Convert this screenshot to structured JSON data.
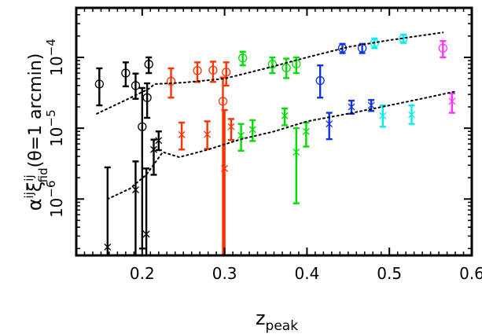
{
  "chart_data": {
    "type": "scatter",
    "xlabel": {
      "main": "z",
      "sub": "peak"
    },
    "ylabel": {
      "alpha": "α",
      "sup1": "ij",
      "xi": "ξ",
      "sup2": "ij",
      "sub": "fid",
      "tail": "(θ=1  arcmin)"
    },
    "xlim": [
      0.12,
      0.6
    ],
    "ylim": [
      1.6e-07,
      0.0005
    ],
    "yscale": "log",
    "x_ticks": [
      {
        "value": 0.2,
        "label": "0.2"
      },
      {
        "value": 0.3,
        "label": "0.3"
      },
      {
        "value": 0.4,
        "label": "0.4"
      },
      {
        "value": 0.5,
        "label": "0.5"
      },
      {
        "value": 0.6,
        "label": "0.6"
      }
    ],
    "y_ticks": [
      {
        "value": 1e-06,
        "label": "10",
        "exp": "−6"
      },
      {
        "value": 1e-05,
        "label": "10",
        "exp": "−5"
      },
      {
        "value": 0.0001,
        "label": "10",
        "exp": "−4"
      }
    ],
    "colors": {
      "black": "#000000",
      "red": "#ff3300",
      "green": "#00dd00",
      "blue": "#1133dd",
      "cyan": "#00eeee",
      "magenta": "#ff33ff"
    },
    "series": [
      {
        "color": "black",
        "marker": "circle",
        "points": [
          {
            "x": 0.148,
            "y": 4.2e-05,
            "lo": 2.1e-05,
            "hi": 7e-05
          },
          {
            "x": 0.18,
            "y": 6e-05,
            "lo": 3.9e-05,
            "hi": 8.5e-05
          },
          {
            "x": 0.192,
            "y": 4e-05,
            "lo": 2.6e-05,
            "hi": 5.9e-05
          },
          {
            "x": 0.2,
            "y": 1.05e-05,
            "lo": 2e-07,
            "hi": 3.7e-05
          },
          {
            "x": 0.206,
            "y": 2.7e-05,
            "lo": 1.4e-05,
            "hi": 4.3e-05
          },
          {
            "x": 0.208,
            "y": 8e-05,
            "lo": 6e-05,
            "hi": 0.0001
          }
        ]
      },
      {
        "color": "black",
        "marker": "cross",
        "points": [
          {
            "x": 0.158,
            "y": 2.1e-07,
            "lo": 1.6e-07,
            "hi": 2.8e-06
          },
          {
            "x": 0.192,
            "y": 1.35e-06,
            "lo": 1.6e-07,
            "hi": 3.4e-06
          },
          {
            "x": 0.205,
            "y": 3.2e-07,
            "lo": 1.6e-07,
            "hi": 2.7e-06
          },
          {
            "x": 0.214,
            "y": 5e-06,
            "lo": 2.2e-06,
            "hi": 6.9e-06
          },
          {
            "x": 0.22,
            "y": 6.7e-06,
            "lo": 4.9e-06,
            "hi": 9e-06
          }
        ]
      },
      {
        "color": "red",
        "marker": "circle",
        "points": [
          {
            "x": 0.235,
            "y": 4.6e-05,
            "lo": 2.7e-05,
            "hi": 7e-05
          },
          {
            "x": 0.267,
            "y": 6.5e-05,
            "lo": 4.5e-05,
            "hi": 8.5e-05
          },
          {
            "x": 0.286,
            "y": 6.6e-05,
            "lo": 4.5e-05,
            "hi": 8.7e-05
          },
          {
            "x": 0.298,
            "y": 2.4e-05,
            "lo": 1.6e-07,
            "hi": 5.2e-05
          },
          {
            "x": 0.302,
            "y": 6.2e-05,
            "lo": 4e-05,
            "hi": 8.5e-05
          }
        ]
      },
      {
        "color": "red",
        "marker": "cross",
        "points": [
          {
            "x": 0.248,
            "y": 8.1e-06,
            "lo": 5e-06,
            "hi": 1.2e-05
          },
          {
            "x": 0.279,
            "y": 8.2e-06,
            "lo": 5.1e-06,
            "hi": 1.25e-05
          },
          {
            "x": 0.3,
            "y": 2.7e-06,
            "lo": 1.6e-07,
            "hi": 1.8e-05
          },
          {
            "x": 0.308,
            "y": 1.05e-05,
            "lo": 6.8e-06,
            "hi": 1.35e-05
          }
        ]
      },
      {
        "color": "green",
        "marker": "circle",
        "points": [
          {
            "x": 0.322,
            "y": 9.8e-05,
            "lo": 7.7e-05,
            "hi": 0.00012
          },
          {
            "x": 0.358,
            "y": 8e-05,
            "lo": 6e-05,
            "hi": 0.0001
          },
          {
            "x": 0.375,
            "y": 7.1e-05,
            "lo": 5.1e-05,
            "hi": 9.6e-05
          },
          {
            "x": 0.387,
            "y": 8.1e-05,
            "lo": 6e-05,
            "hi": 0.0001
          }
        ]
      },
      {
        "color": "green",
        "marker": "cross",
        "points": [
          {
            "x": 0.32,
            "y": 7.9e-06,
            "lo": 4.8e-06,
            "hi": 1.15e-05
          },
          {
            "x": 0.334,
            "y": 9.6e-06,
            "lo": 6.6e-06,
            "hi": 1.3e-05
          },
          {
            "x": 0.373,
            "y": 1.5e-05,
            "lo": 1.1e-05,
            "hi": 1.9e-05
          },
          {
            "x": 0.387,
            "y": 4.6e-06,
            "lo": 8.7e-07,
            "hi": 1e-05
          },
          {
            "x": 0.399,
            "y": 9e-06,
            "lo": 5.5e-06,
            "hi": 1.2e-05
          }
        ]
      },
      {
        "color": "blue",
        "marker": "circle",
        "points": [
          {
            "x": 0.416,
            "y": 4.7e-05,
            "lo": 2.7e-05,
            "hi": 7.7e-05
          },
          {
            "x": 0.443,
            "y": 0.000135,
            "lo": 0.000115,
            "hi": 0.000155
          },
          {
            "x": 0.467,
            "y": 0.000135,
            "lo": 0.000115,
            "hi": 0.000155
          }
        ]
      },
      {
        "color": "blue",
        "marker": "cross",
        "points": [
          {
            "x": 0.427,
            "y": 1.15e-05,
            "lo": 7e-06,
            "hi": 1.65e-05
          },
          {
            "x": 0.454,
            "y": 2e-05,
            "lo": 1.6e-05,
            "hi": 2.45e-05
          },
          {
            "x": 0.478,
            "y": 2.1e-05,
            "lo": 1.75e-05,
            "hi": 2.5e-05
          }
        ]
      },
      {
        "color": "cyan",
        "marker": "circle",
        "points": [
          {
            "x": 0.482,
            "y": 0.00016,
            "lo": 0.000135,
            "hi": 0.000185
          },
          {
            "x": 0.517,
            "y": 0.000185,
            "lo": 0.00016,
            "hi": 0.00021
          }
        ]
      },
      {
        "color": "cyan",
        "marker": "cross",
        "points": [
          {
            "x": 0.492,
            "y": 1.5e-05,
            "lo": 1.05e-05,
            "hi": 2.1e-05
          },
          {
            "x": 0.527,
            "y": 1.55e-05,
            "lo": 1.15e-05,
            "hi": 2.1e-05
          }
        ]
      },
      {
        "color": "magenta",
        "marker": "circle",
        "points": [
          {
            "x": 0.565,
            "y": 0.000135,
            "lo": 0.0001,
            "hi": 0.00017
          }
        ]
      },
      {
        "color": "magenta",
        "marker": "cross",
        "points": [
          {
            "x": 0.576,
            "y": 2.4e-05,
            "lo": 1.65e-05,
            "hi": 3.1e-05
          }
        ]
      }
    ],
    "model_lines": [
      {
        "style": "dotted",
        "color": "black",
        "points": [
          {
            "x": 0.145,
            "y": 1.6e-05
          },
          {
            "x": 0.18,
            "y": 2.5e-05
          },
          {
            "x": 0.208,
            "y": 3.6e-05
          },
          {
            "x": 0.215,
            "y": 4.2e-05
          },
          {
            "x": 0.25,
            "y": 4.4e-05
          },
          {
            "x": 0.3,
            "y": 5e-05
          },
          {
            "x": 0.35,
            "y": 7e-05
          },
          {
            "x": 0.4,
            "y": 0.0001
          },
          {
            "x": 0.45,
            "y": 0.00014
          },
          {
            "x": 0.5,
            "y": 0.000175
          },
          {
            "x": 0.565,
            "y": 0.000225
          }
        ]
      },
      {
        "style": "dotted",
        "color": "black",
        "points": [
          {
            "x": 0.158,
            "y": 1e-06
          },
          {
            "x": 0.185,
            "y": 1.4e-06
          },
          {
            "x": 0.205,
            "y": 2.2e-06
          },
          {
            "x": 0.225,
            "y": 4.6e-06
          },
          {
            "x": 0.245,
            "y": 3.9e-06
          },
          {
            "x": 0.28,
            "y": 5e-06
          },
          {
            "x": 0.32,
            "y": 7e-06
          },
          {
            "x": 0.36,
            "y": 9e-06
          },
          {
            "x": 0.4,
            "y": 1.25e-05
          },
          {
            "x": 0.45,
            "y": 1.6e-05
          },
          {
            "x": 0.5,
            "y": 2.1e-05
          },
          {
            "x": 0.545,
            "y": 2.7e-05
          },
          {
            "x": 0.58,
            "y": 3.3e-05
          }
        ]
      }
    ]
  }
}
